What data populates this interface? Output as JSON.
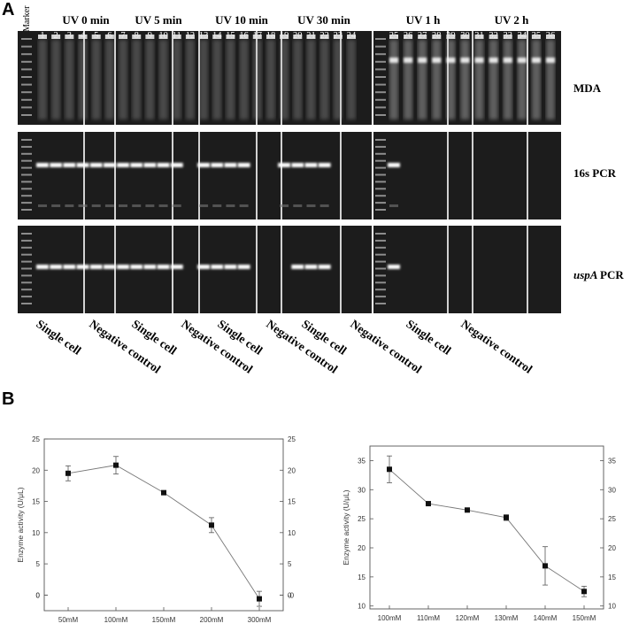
{
  "panel_labels": {
    "a": "A",
    "b": "B"
  },
  "gel": {
    "marker_label": "Marker",
    "groups": [
      {
        "label": "UV 0 min"
      },
      {
        "label": "UV 5 min"
      },
      {
        "label": "UV 10 min"
      },
      {
        "label": "UV 30 min"
      },
      {
        "label": "UV 1 h"
      },
      {
        "label": "UV 2 h"
      }
    ],
    "lane_numbers": [
      "1",
      "2",
      "3",
      "4",
      "5",
      "6",
      "7",
      "8",
      "9",
      "10",
      "11",
      "12",
      "13",
      "14",
      "15",
      "16",
      "17",
      "18",
      "19",
      "20",
      "21",
      "22",
      "23",
      "24",
      "25",
      "26",
      "27",
      "28",
      "29",
      "30",
      "31",
      "32",
      "33",
      "34",
      "35",
      "36"
    ],
    "row_labels": [
      {
        "text": "MDA",
        "italic_part": ""
      },
      {
        "text": "16s PCR",
        "italic_part": ""
      },
      {
        "text": "PCR",
        "italic_part": "uspA"
      }
    ],
    "bottom_labels": [
      "Single cell",
      "Negative control",
      "Single cell",
      "Negative control",
      "Single cell",
      "Negative control",
      "Single cell",
      "Negative control",
      "Single cell",
      "Negative control"
    ]
  },
  "chart_data": [
    {
      "type": "line",
      "x": [
        "50mM",
        "100mM",
        "150mM",
        "200mM",
        "300mM"
      ],
      "values": [
        19.5,
        20.8,
        16.4,
        11.2,
        -0.6
      ],
      "errors": [
        1.2,
        1.4,
        0,
        1.2,
        1.2
      ],
      "ylabel": "Enzyme activity (U/μL)",
      "xlabel": "",
      "ylim": [
        -2.5,
        25
      ],
      "yticks": [
        "-0",
        "0",
        "5",
        "10",
        "15",
        "20",
        "25"
      ],
      "ytick_values": [
        0,
        0,
        5,
        10,
        15,
        20,
        25
      ]
    },
    {
      "type": "line",
      "x": [
        "100mM",
        "110mM",
        "120mM",
        "130mM",
        "140mM",
        "150mM"
      ],
      "values": [
        33.5,
        27.6,
        26.5,
        25.2,
        16.9,
        12.5
      ],
      "errors": [
        2.3,
        0,
        0,
        0.5,
        3.3,
        0.9
      ],
      "ylabel": "Enzyme activity (U/μL)",
      "xlabel": "",
      "ylim": [
        9.5,
        37.5
      ],
      "yticks": [
        "10",
        "15",
        "20",
        "25",
        "30",
        "35"
      ],
      "ytick_values": [
        10,
        15,
        20,
        25,
        30,
        35
      ]
    }
  ]
}
